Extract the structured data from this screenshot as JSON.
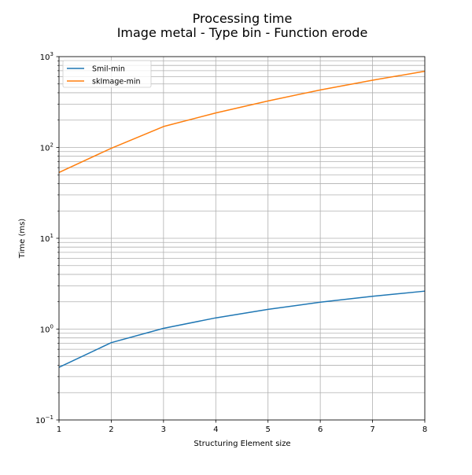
{
  "chart_data": {
    "type": "line",
    "title": "Processing time",
    "subtitle": "Image metal - Type bin - Function erode",
    "xlabel": "Structuring Element size",
    "ylabel": "Time (ms)",
    "xlim": [
      1,
      8
    ],
    "ylim": [
      0.1,
      1000
    ],
    "yscale": "log",
    "grid": true,
    "legend_position": "top-left",
    "x_ticks": [
      "1",
      "2",
      "3",
      "4",
      "5",
      "6",
      "7",
      "8"
    ],
    "y_ticks": [
      {
        "base": "10",
        "exp": "−1",
        "value": 0.1
      },
      {
        "base": "10",
        "exp": "0",
        "value": 1
      },
      {
        "base": "10",
        "exp": "1",
        "value": 10
      },
      {
        "base": "10",
        "exp": "2",
        "value": 100
      },
      {
        "base": "10",
        "exp": "3",
        "value": 1000
      }
    ],
    "x": [
      1,
      2,
      3,
      4,
      5,
      6,
      7,
      8
    ],
    "series": [
      {
        "name": "Smil-min",
        "color": "#1f77b4",
        "values": [
          0.38,
          0.71,
          1.02,
          1.33,
          1.65,
          1.98,
          2.3,
          2.62
        ]
      },
      {
        "name": "skImage-min",
        "color": "#ff7f0e",
        "values": [
          53,
          98,
          170,
          240,
          325,
          430,
          550,
          690
        ]
      }
    ]
  }
}
